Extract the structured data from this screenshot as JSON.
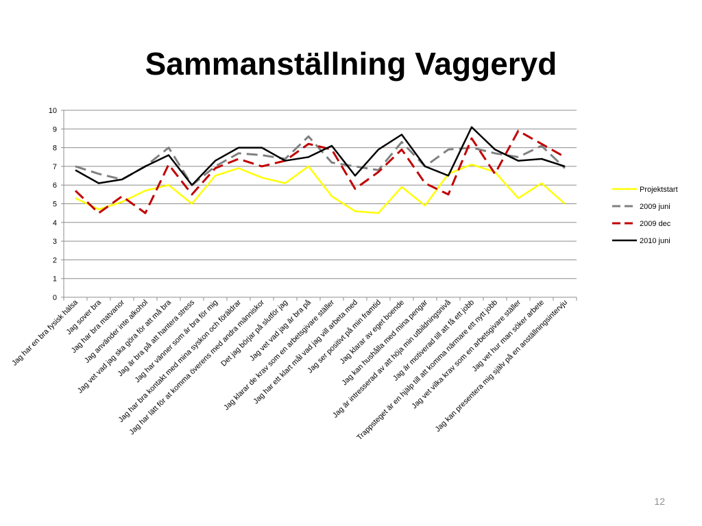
{
  "title": "Sammanställning Vaggeryd",
  "page_number": "12",
  "chart_data": {
    "type": "line",
    "title": "Sammanställning Vaggeryd",
    "xlabel": "",
    "ylabel": "",
    "ylim": [
      0,
      10
    ],
    "yticks": [
      "0",
      "1",
      "2",
      "3",
      "4",
      "5",
      "6",
      "7",
      "8",
      "9",
      "10"
    ],
    "grid": true,
    "legend": "right",
    "categories": [
      "Jag har en bra fysisk hälsa",
      "Jag sover bra",
      "Jag har bra matvanor",
      "Jag använder inte alkohol",
      "Jag vet vad jag ska göra för att må bra",
      "Jag är bra på att hantera stress",
      "Jag har vänner som är bra för mig",
      "Jag har bra kontakt med mina syskon och föräldrar",
      "Jag har lätt för at komma överens med andra människor",
      "Det jag börjar på slutför jag",
      "Jag vet vad jag är bra på",
      "Jag klarar de krav som en arbetsgivare ställer",
      "Jag har ett klart mål vad jag vill arbeta med",
      "Jag ser positivt på min framtid",
      "Jag klarar av eget boende",
      "Jag kan hushålla med mina pengar",
      "Jag är intresserad av att höja min utbildningsnivå",
      "Jag är motiverad till att få ett jobb",
      "Trappsteget är en hjälp till att komma närmare ett nytt jobb",
      "Jag vet vilka krav som en arbetsgivare ställer",
      "Jag vet hur man söker arbete",
      "Jag kan presentera mig själv på en anställningsintervju"
    ],
    "series": [
      {
        "name": "Projektstart",
        "color": "#ffff00",
        "dash": "solid",
        "values": [
          5.3,
          4.7,
          5.1,
          5.7,
          6.0,
          5.0,
          6.5,
          6.9,
          6.4,
          6.1,
          7.0,
          5.4,
          4.6,
          4.5,
          5.9,
          4.9,
          6.6,
          7.1,
          6.7,
          5.3,
          6.1,
          5.0
        ]
      },
      {
        "name": "2009 juni",
        "color": "#808080",
        "dash": "dashed",
        "values": [
          7.0,
          6.6,
          6.3,
          7.0,
          8.0,
          6.0,
          7.0,
          7.7,
          7.6,
          7.4,
          8.6,
          7.2,
          7.0,
          6.8,
          8.3,
          7.0,
          7.9,
          8.0,
          7.7,
          7.5,
          8.1,
          6.9
        ]
      },
      {
        "name": "2009 dec",
        "color": "#c00000",
        "dash": "dashed",
        "values": [
          5.7,
          4.5,
          5.4,
          4.5,
          7.1,
          5.5,
          6.9,
          7.4,
          7.0,
          7.3,
          8.2,
          7.9,
          5.8,
          6.7,
          7.9,
          6.1,
          5.5,
          8.5,
          6.6,
          8.9,
          8.2,
          7.5
        ]
      },
      {
        "name": "2010 juni",
        "color": "#000000",
        "dash": "solid",
        "values": [
          6.8,
          6.1,
          6.3,
          7.0,
          7.6,
          6.0,
          7.3,
          8.0,
          8.0,
          7.3,
          7.5,
          8.1,
          6.5,
          7.9,
          8.7,
          7.0,
          6.5,
          9.1,
          7.9,
          7.3,
          7.4,
          7.0
        ]
      }
    ]
  }
}
